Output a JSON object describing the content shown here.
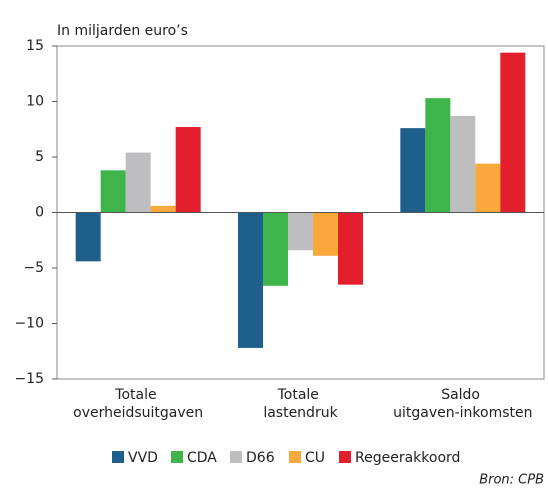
{
  "chart_data": {
    "type": "bar",
    "y_label": "In miljarden euro’s",
    "categories": [
      "Totale overheidsuitgaven",
      "Totale lastendruk",
      "Saldo uitgaven-inkomsten"
    ],
    "series": [
      {
        "name": "VVD",
        "color": "#1f5f8b",
        "values": [
          -4.4,
          -12.2,
          7.6
        ]
      },
      {
        "name": "CDA",
        "color": "#3db54a",
        "values": [
          3.8,
          -6.6,
          10.3
        ]
      },
      {
        "name": "D66",
        "color": "#bebec0",
        "values": [
          5.4,
          -3.4,
          8.7
        ]
      },
      {
        "name": "CU",
        "color": "#f9a83b",
        "values": [
          0.6,
          -3.9,
          4.4
        ]
      },
      {
        "name": "Regeerakkoord",
        "color": "#e31e2d",
        "values": [
          7.7,
          -6.5,
          14.4
        ]
      }
    ],
    "ylim": [
      -15,
      15
    ],
    "yticks": [
      {
        "value": -15,
        "label": "−15"
      },
      {
        "value": -10,
        "label": "−10"
      },
      {
        "value": -5,
        "label": "−5"
      },
      0,
      5,
      10,
      15
    ],
    "grid": false,
    "legend": "bottom",
    "source": "Bron: CPB"
  }
}
